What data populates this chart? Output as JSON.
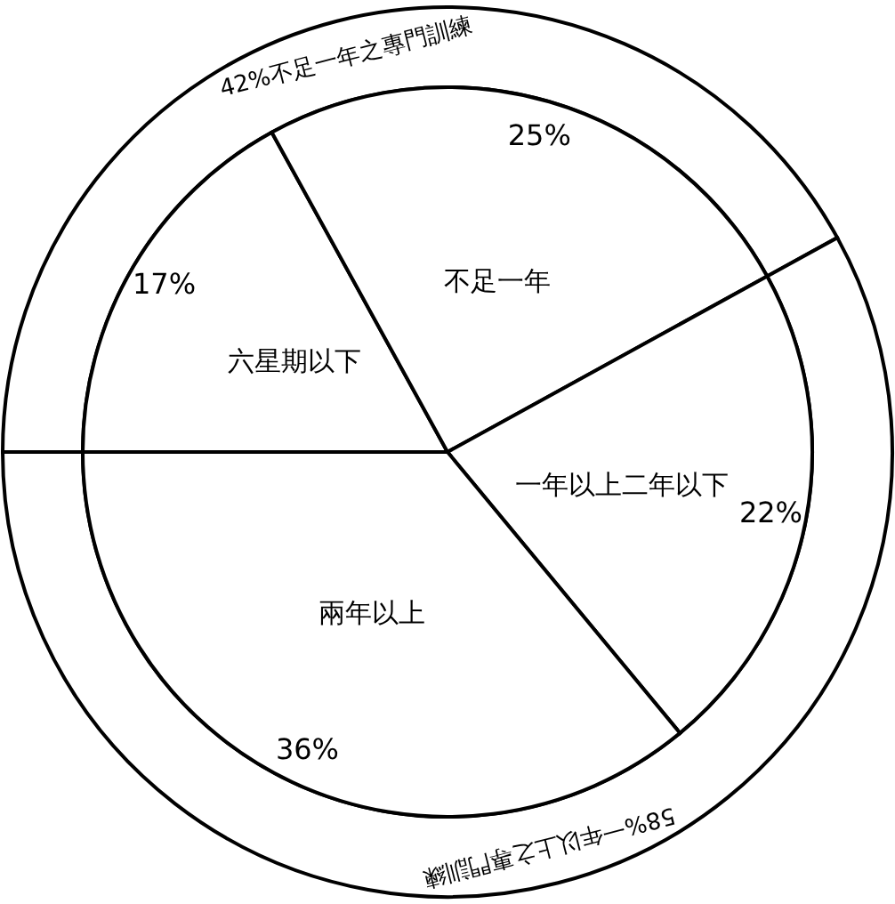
{
  "chart_data": [
    {
      "type": "pie",
      "categories": [
        "六星期以下",
        "不足一年",
        "一年以上二年以下",
        "兩年以上"
      ],
      "values": [
        17,
        25,
        22,
        36
      ],
      "colors": [
        "#ffffff",
        "#ffffff",
        "#ffffff",
        "#ffffff"
      ],
      "value_labels": [
        "17%",
        "25%",
        "22%",
        "36%"
      ]
    },
    {
      "type": "donut",
      "categories": [
        "不足一年之專門訓練",
        "一年以上之專門訓練"
      ],
      "values": [
        42,
        58
      ],
      "colors": [
        "#ffffff",
        "#ffffff"
      ],
      "value_labels": [
        "42%",
        "58%"
      ]
    }
  ]
}
